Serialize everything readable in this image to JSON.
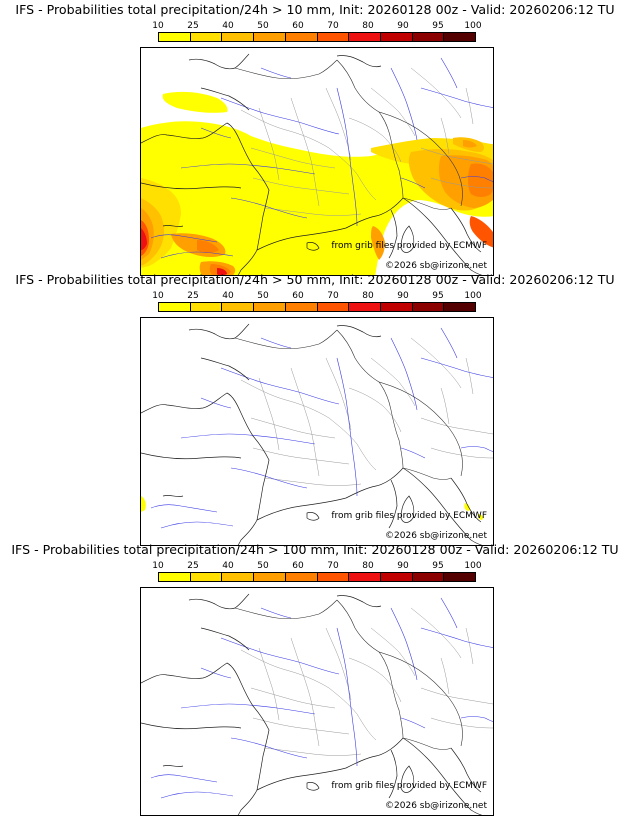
{
  "colorbar": {
    "ticks": [
      "10",
      "25",
      "40",
      "50",
      "60",
      "70",
      "80",
      "90",
      "95",
      "100"
    ],
    "colors": [
      "#ffff00",
      "#ffe000",
      "#ffc000",
      "#ffa000",
      "#ff8000",
      "#ff5500",
      "#ee1111",
      "#c00000",
      "#8b0000",
      "#550000"
    ]
  },
  "panels": [
    {
      "title": "IFS - Probabilities total precipitation/24h > 10 mm, Init: 20260128 00z - Valid: 20260206:12 TU",
      "source_credit": "from grib files provided by ECMWF",
      "copyright": "©2026 sb@irizone.net"
    },
    {
      "title": "IFS - Probabilities total precipitation/24h > 50 mm, Init: 20260128 00z - Valid: 20260206:12 TU",
      "source_credit": "from grib files provided by ECMWF",
      "copyright": "©2026 sb@irizone.net"
    },
    {
      "title": "IFS - Probabilities total precipitation/24h > 100 mm, Init: 20260128 00z - Valid: 20260206:12 TU",
      "source_credit": "from grib files provided by ECMWF",
      "copyright": "©2026 sb@irizone.net"
    }
  ]
}
